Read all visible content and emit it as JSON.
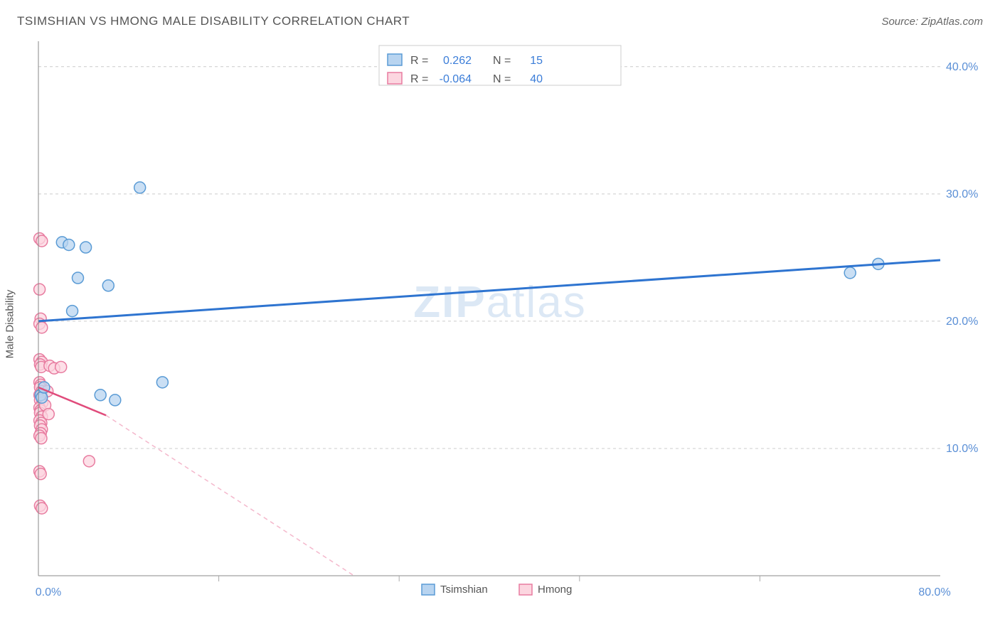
{
  "title": "TSIMSHIAN VS HMONG MALE DISABILITY CORRELATION CHART",
  "source": "Source: ZipAtlas.com",
  "ylabel": "Male Disability",
  "watermark": "ZIPatlas",
  "chart": {
    "type": "scatter",
    "xlim": [
      0,
      80
    ],
    "ylim": [
      0,
      42
    ],
    "xtick_positions": [
      0,
      80
    ],
    "xtick_labels": [
      "0.0%",
      "80.0%"
    ],
    "xtick_minor": [
      16,
      32,
      48,
      64
    ],
    "ytick_positions": [
      10,
      20,
      30,
      40
    ],
    "ytick_labels": [
      "10.0%",
      "20.0%",
      "30.0%",
      "40.0%"
    ],
    "grid_color": "#cccccc",
    "background_color": "#ffffff",
    "axis_color": "#888888",
    "series": [
      {
        "name": "Tsimshian",
        "color_fill": "#b8d4f0",
        "color_stroke": "#5a9bd5",
        "marker_radius": 8,
        "R": "0.262",
        "N": "15",
        "points": [
          [
            0.2,
            14.2
          ],
          [
            0.3,
            14.0
          ],
          [
            0.5,
            14.8
          ],
          [
            2.1,
            26.2
          ],
          [
            2.7,
            26.0
          ],
          [
            4.2,
            25.8
          ],
          [
            3.5,
            23.4
          ],
          [
            6.2,
            22.8
          ],
          [
            3.0,
            20.8
          ],
          [
            5.5,
            14.2
          ],
          [
            6.8,
            13.8
          ],
          [
            11.0,
            15.2
          ],
          [
            9.0,
            30.5
          ],
          [
            72.0,
            23.8
          ],
          [
            74.5,
            24.5
          ]
        ],
        "trend_line": {
          "x1": 0,
          "y1": 20.0,
          "x2": 80,
          "y2": 24.8,
          "color": "#2e74d0",
          "width": 3,
          "dash": "none"
        }
      },
      {
        "name": "Hmong",
        "color_fill": "#fcd6e0",
        "color_stroke": "#e87ca0",
        "marker_radius": 8,
        "R": "-0.064",
        "N": "40",
        "points": [
          [
            0.1,
            26.5
          ],
          [
            0.3,
            26.3
          ],
          [
            0.1,
            22.5
          ],
          [
            0.2,
            20.2
          ],
          [
            0.1,
            19.8
          ],
          [
            0.3,
            19.5
          ],
          [
            0.1,
            17.0
          ],
          [
            0.3,
            16.8
          ],
          [
            0.15,
            16.6
          ],
          [
            0.25,
            16.4
          ],
          [
            1.0,
            16.5
          ],
          [
            1.4,
            16.3
          ],
          [
            2.0,
            16.4
          ],
          [
            0.1,
            15.2
          ],
          [
            0.2,
            15.0
          ],
          [
            0.15,
            14.8
          ],
          [
            0.3,
            14.5
          ],
          [
            0.1,
            14.2
          ],
          [
            0.25,
            14.0
          ],
          [
            0.15,
            13.8
          ],
          [
            0.35,
            13.6
          ],
          [
            0.1,
            13.2
          ],
          [
            0.2,
            13.0
          ],
          [
            0.15,
            12.8
          ],
          [
            0.3,
            12.5
          ],
          [
            0.1,
            12.2
          ],
          [
            0.25,
            12.0
          ],
          [
            0.15,
            11.8
          ],
          [
            0.3,
            11.5
          ],
          [
            0.2,
            11.2
          ],
          [
            0.1,
            11.0
          ],
          [
            0.25,
            10.8
          ],
          [
            4.5,
            9.0
          ],
          [
            0.1,
            8.2
          ],
          [
            0.2,
            8.0
          ],
          [
            0.15,
            5.5
          ],
          [
            0.3,
            5.3
          ],
          [
            0.8,
            14.5
          ],
          [
            0.6,
            13.4
          ],
          [
            0.9,
            12.7
          ]
        ],
        "trend_line_solid": {
          "x1": 0,
          "y1": 14.8,
          "x2": 6,
          "y2": 12.6,
          "color": "#e04b7b",
          "width": 2.5
        },
        "trend_line_dashed": {
          "x1": 6,
          "y1": 12.6,
          "x2": 28,
          "y2": 0,
          "color": "#f4b8cc",
          "width": 1.5,
          "dash": "6 5"
        }
      }
    ]
  },
  "legend_top": {
    "rows": [
      {
        "swatch": "blue",
        "R_label": "R =",
        "R_val": "0.262",
        "N_label": "N =",
        "N_val": "15"
      },
      {
        "swatch": "pink",
        "R_label": "R =",
        "R_val": "-0.064",
        "N_label": "N =",
        "N_val": "40"
      }
    ]
  },
  "legend_bottom": {
    "items": [
      {
        "swatch": "blue",
        "label": "Tsimshian"
      },
      {
        "swatch": "pink",
        "label": "Hmong"
      }
    ]
  }
}
